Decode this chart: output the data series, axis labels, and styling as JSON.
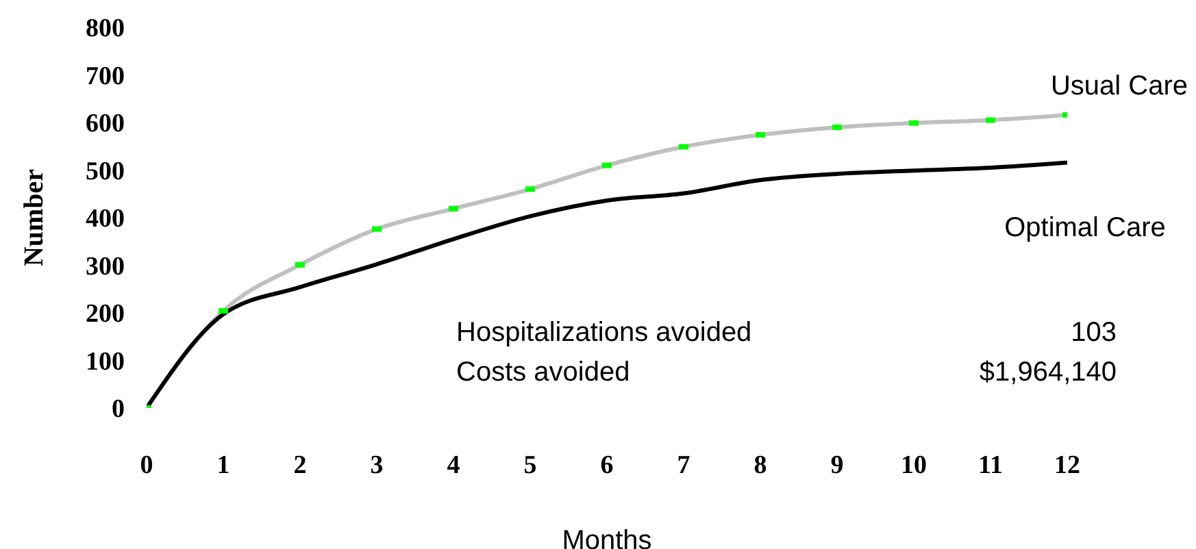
{
  "chart_data": {
    "type": "line",
    "xlabel": "Months",
    "ylabel": "Number",
    "x": [
      0,
      1,
      2,
      3,
      4,
      5,
      6,
      7,
      8,
      9,
      10,
      11,
      12
    ],
    "xlim": [
      0,
      12
    ],
    "xticks": [
      0,
      1,
      2,
      3,
      4,
      5,
      6,
      7,
      8,
      9,
      10,
      11,
      12
    ],
    "ylim": [
      0,
      800
    ],
    "yticks": [
      0,
      100,
      200,
      300,
      400,
      500,
      600,
      700,
      800
    ],
    "grid": false,
    "legend": false,
    "line_style": "solid",
    "series": [
      {
        "name": "Usual Care",
        "color": "#c0c0c0",
        "marker": "square",
        "colors": [
          "#00ff00",
          "#00ff00",
          "#00ff00",
          "#00ff00",
          "#00ff00",
          "#00ff00",
          "#00ff00",
          "#00ff00",
          "#00ff00",
          "#00ff00",
          "#00ff00",
          "#00ff00",
          "#00ff00"
        ],
        "values": [
          0,
          204,
          301,
          376,
          419,
          460,
          510,
          549,
          574,
          590,
          599,
          605,
          616
        ]
      },
      {
        "name": "Optimal Care",
        "color": "#000000",
        "marker": "none",
        "values": [
          0,
          197,
          254,
          302,
          355,
          403,
          436,
          451,
          479,
          492,
          499,
          505,
          516
        ]
      }
    ],
    "annotations": [
      "Hospitalizations avoided",
      "103",
      "Costs avoided",
      "$1,964,140"
    ]
  }
}
